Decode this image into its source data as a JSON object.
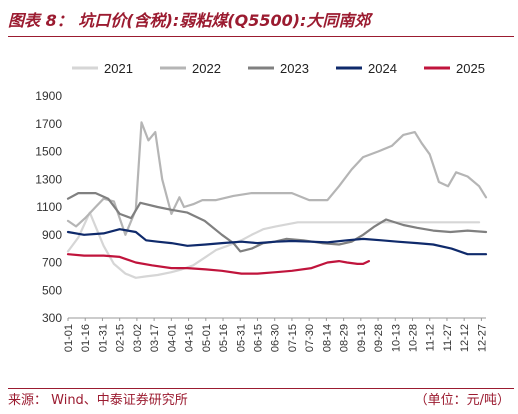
{
  "header": {
    "title": "图表 8： 坑口价(含税):弱粘煤(Q5500):大同南郊"
  },
  "footer": {
    "source": "来源： Wind、中泰证券研究所",
    "unit": "（单位：元/吨）"
  },
  "chart_data": {
    "type": "line",
    "title": "坑口价(含税):弱粘煤(Q5500):大同南郊",
    "xlabel": "",
    "ylabel": "",
    "ylim": [
      300,
      1900
    ],
    "yticks": [
      300,
      500,
      700,
      900,
      1100,
      1300,
      1500,
      1700,
      1900
    ],
    "xticks": [
      "01-01",
      "01-16",
      "01-31",
      "02-15",
      "03-02",
      "03-17",
      "04-01",
      "04-16",
      "05-01",
      "05-16",
      "05-31",
      "06-15",
      "06-30",
      "07-15",
      "07-30",
      "08-14",
      "08-29",
      "09-13",
      "09-28",
      "10-13",
      "10-28",
      "11-12",
      "11-27",
      "12-12",
      "12-27"
    ],
    "x_domain": [
      "01-01",
      "12-31"
    ],
    "legend_position": "top",
    "grid": false,
    "series": [
      {
        "name": "2021",
        "color": "#d6d6d6",
        "x": [
          "01-01",
          "01-10",
          "01-20",
          "02-01",
          "02-10",
          "02-20",
          "03-01",
          "03-10",
          "03-20",
          "04-01",
          "04-10",
          "04-20",
          "05-01",
          "05-10",
          "05-20",
          "06-01",
          "06-10",
          "06-20",
          "07-01",
          "07-20",
          "08-10",
          "09-01",
          "09-20",
          "10-10",
          "10-25",
          "11-10",
          "11-25",
          "12-10",
          "12-25"
        ],
        "values": [
          780,
          880,
          1060,
          820,
          690,
          620,
          590,
          600,
          610,
          630,
          650,
          680,
          740,
          790,
          820,
          860,
          900,
          940,
          960,
          990,
          990,
          990,
          990,
          990,
          990,
          990,
          990,
          990,
          990
        ]
      },
      {
        "name": "2022",
        "color": "#b5b5b5",
        "x": [
          "01-01",
          "01-08",
          "01-16",
          "01-25",
          "02-01",
          "02-10",
          "02-20",
          "03-01",
          "03-06",
          "03-12",
          "03-18",
          "03-24",
          "04-01",
          "04-08",
          "04-12",
          "04-20",
          "04-28",
          "05-10",
          "05-25",
          "06-10",
          "06-20",
          "07-01",
          "07-15",
          "07-30",
          "08-15",
          "08-25",
          "09-05",
          "09-15",
          "09-28",
          "10-10",
          "10-20",
          "10-30",
          "11-05",
          "11-12",
          "11-20",
          "11-28",
          "12-05",
          "12-15",
          "12-25",
          "12-31"
        ],
        "values": [
          1000,
          960,
          1020,
          1100,
          1160,
          1140,
          900,
          1080,
          1710,
          1580,
          1640,
          1300,
          1050,
          1170,
          1100,
          1120,
          1150,
          1150,
          1180,
          1200,
          1200,
          1200,
          1200,
          1150,
          1150,
          1250,
          1370,
          1460,
          1500,
          1540,
          1620,
          1640,
          1560,
          1480,
          1280,
          1250,
          1350,
          1320,
          1250,
          1170
        ]
      },
      {
        "name": "2023",
        "color": "#808080",
        "x": [
          "01-01",
          "01-10",
          "01-25",
          "02-05",
          "02-15",
          "02-25",
          "03-05",
          "03-20",
          "04-01",
          "04-15",
          "04-30",
          "05-15",
          "05-25",
          "05-31",
          "06-10",
          "06-20",
          "06-30",
          "07-10",
          "07-25",
          "08-10",
          "08-25",
          "09-05",
          "09-15",
          "09-25",
          "10-05",
          "10-20",
          "11-01",
          "11-15",
          "11-30",
          "12-15",
          "12-31"
        ],
        "values": [
          1160,
          1200,
          1200,
          1160,
          1050,
          1020,
          1130,
          1100,
          1080,
          1060,
          1000,
          900,
          840,
          780,
          800,
          840,
          850,
          870,
          860,
          840,
          830,
          850,
          900,
          960,
          1010,
          970,
          950,
          930,
          920,
          930,
          920
        ]
      },
      {
        "name": "2024",
        "color": "#0f2a6b",
        "x": [
          "01-01",
          "01-15",
          "02-01",
          "02-15",
          "03-01",
          "03-10",
          "03-20",
          "04-01",
          "04-15",
          "05-01",
          "05-15",
          "06-01",
          "06-15",
          "07-01",
          "07-15",
          "08-01",
          "08-15",
          "09-01",
          "09-15",
          "10-01",
          "10-15",
          "11-01",
          "11-15",
          "12-01",
          "12-15",
          "12-31"
        ],
        "values": [
          920,
          900,
          910,
          940,
          920,
          860,
          850,
          840,
          820,
          830,
          840,
          850,
          840,
          850,
          855,
          850,
          845,
          860,
          870,
          860,
          850,
          840,
          830,
          800,
          760,
          760
        ]
      },
      {
        "name": "2025",
        "color": "#c0143c",
        "x": [
          "01-01",
          "01-15",
          "02-01",
          "02-15",
          "03-01",
          "03-15",
          "04-01",
          "04-15",
          "05-01",
          "05-15",
          "06-01",
          "06-15",
          "07-01",
          "07-15",
          "08-01",
          "08-15",
          "08-25",
          "09-01",
          "09-10",
          "09-15",
          "09-20"
        ],
        "values": [
          760,
          750,
          750,
          740,
          700,
          680,
          660,
          660,
          650,
          640,
          620,
          620,
          630,
          640,
          660,
          700,
          710,
          700,
          690,
          690,
          710
        ]
      }
    ]
  }
}
